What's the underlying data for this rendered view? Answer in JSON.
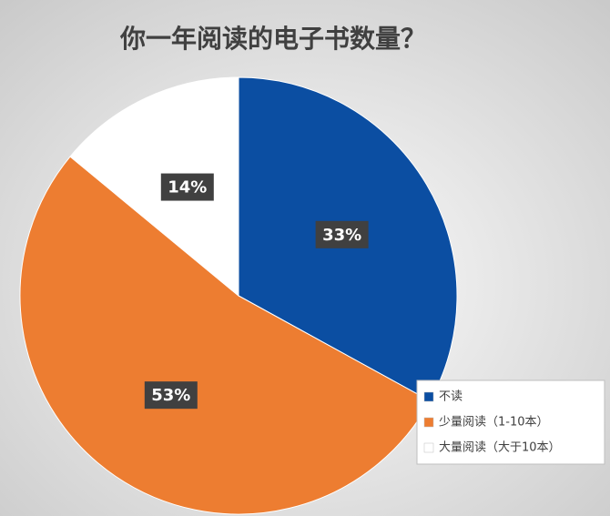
{
  "chart_data": {
    "type": "pie",
    "title": "你一年阅读的电子书数量？",
    "categories": [
      "不读",
      "少量阅读（1-10本）",
      "大量阅读（大于10本）"
    ],
    "values": [
      33,
      53,
      14
    ],
    "value_labels": [
      "33%",
      "53%",
      "14%"
    ],
    "colors": [
      "#0b4ea2",
      "#ed7d31",
      "#ffffff"
    ]
  }
}
